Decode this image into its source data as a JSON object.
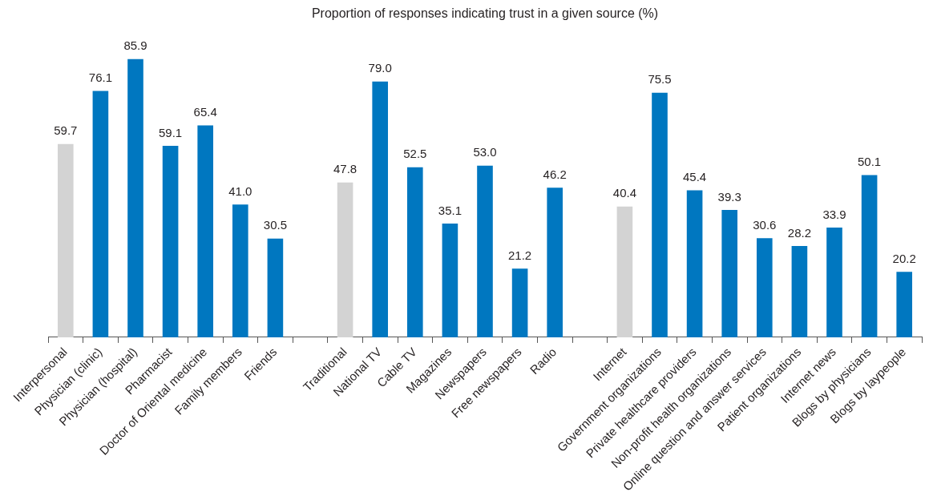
{
  "chart_data": {
    "type": "bar",
    "title": "Proportion of responses indicating trust in a given source (%)",
    "categories": [
      "Interpersonal",
      "Physician (clinic)",
      "Physician (hospital)",
      "Pharmacist",
      "Doctor of Oriental medicine",
      "Family members",
      "Friends",
      null,
      "Traditional",
      "National TV",
      "Cable TV",
      "Magazines",
      "Newspapers",
      "Free newspapers",
      "Radio",
      null,
      "Internet",
      "Government organizations",
      "Private healthcare providers",
      "Non-profit health organizations",
      "Online question and answer services",
      "Patient organizations",
      "Internet news",
      "Blogs by physicians",
      "Blogs by laypeople"
    ],
    "values": [
      59.7,
      76.1,
      85.9,
      59.1,
      65.4,
      41.0,
      30.5,
      null,
      47.8,
      79.0,
      52.5,
      35.1,
      53.0,
      21.2,
      46.2,
      null,
      40.4,
      75.5,
      45.4,
      39.3,
      30.6,
      28.2,
      33.9,
      50.1,
      20.2
    ],
    "colors": [
      "#d3d3d3",
      "#0077c0",
      "#0077c0",
      "#0077c0",
      "#0077c0",
      "#0077c0",
      "#0077c0",
      null,
      "#d3d3d3",
      "#0077c0",
      "#0077c0",
      "#0077c0",
      "#0077c0",
      "#0077c0",
      "#0077c0",
      null,
      "#d3d3d3",
      "#0077c0",
      "#0077c0",
      "#0077c0",
      "#0077c0",
      "#0077c0",
      "#0077c0",
      "#0077c0",
      "#0077c0"
    ],
    "value_labels": [
      "59.7",
      "76.1",
      "85.9",
      "59.1",
      "65.4",
      "41.0",
      "30.5",
      null,
      "47.8",
      "79.0",
      "52.5",
      "35.1",
      "53.0",
      "21.2",
      "46.2",
      null,
      "40.4",
      "75.5",
      "45.4",
      "39.3",
      "30.6",
      "28.2",
      "33.9",
      "50.1",
      "20.2"
    ],
    "legend": false,
    "tick_labels": "x"
  }
}
